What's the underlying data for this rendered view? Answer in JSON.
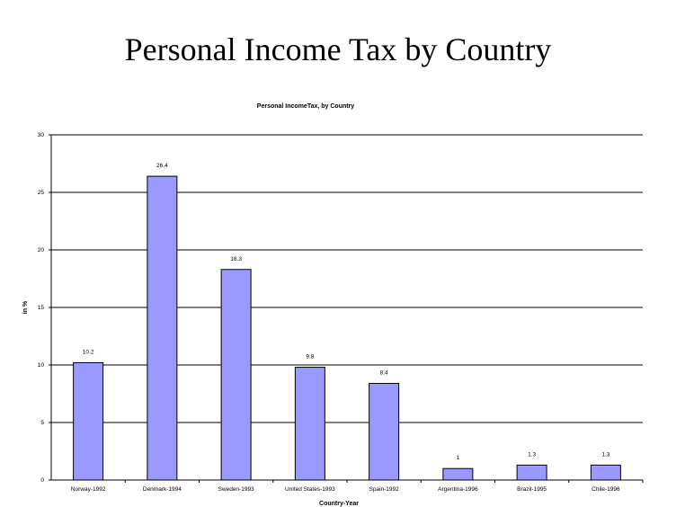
{
  "slide": {
    "title": "Personal Income Tax by Country"
  },
  "chart_data": {
    "type": "bar",
    "title": "Personal IncomeTax, by Country",
    "xlabel": "Country-Year",
    "ylabel": "in %",
    "ylim": [
      0,
      30
    ],
    "yticks": [
      "0",
      "5",
      "10",
      "15",
      "20",
      "25",
      "30"
    ],
    "categories": [
      "Norway-1992",
      "Denmark-1994",
      "Sweden-1993",
      "United States-1993",
      "Spain-1992",
      "Argentina-1996",
      "Brazil-1995",
      "Chile-1996"
    ],
    "values": [
      10.2,
      26.4,
      18.3,
      9.8,
      8.4,
      1,
      1.3,
      1.3
    ],
    "data_labels": [
      "10.2",
      "26.4",
      "18.3",
      "9.8",
      "8.4",
      "1",
      "1.3",
      "1.3"
    ],
    "grid": true,
    "bar_color": "#9999ff",
    "bar_border_color": "#000000"
  }
}
